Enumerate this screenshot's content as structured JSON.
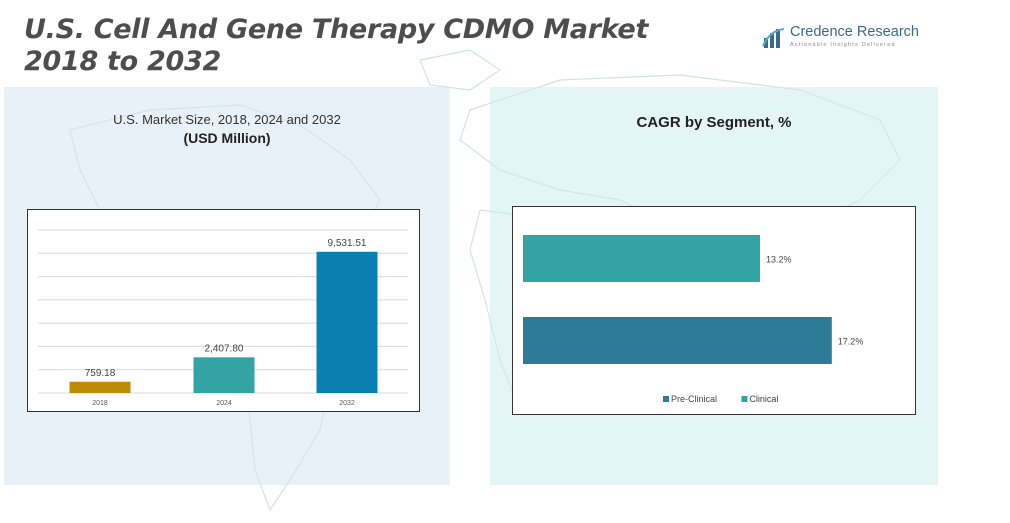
{
  "title": {
    "line1": "U.S. Cell And Gene Therapy CDMO Market",
    "line2": "2018 to 2032"
  },
  "brand": {
    "name": "Credence Research",
    "tagline": "Actionable Insights Delivered"
  },
  "colors": {
    "bar_2018": "#bf8b07",
    "bar_2024": "#33a3a3",
    "bar_2032": "#0a7fb0",
    "pre_clinical": "#2e7b98",
    "clinical": "#33a3a3",
    "title": "#4d4d4d"
  },
  "chart_data": [
    {
      "type": "bar",
      "subtitle": "U.S. Market Size, 2018, 2024 and 2032",
      "unit": "(USD Million)",
      "categories": [
        "2018",
        "2024",
        "2032"
      ],
      "values": [
        759.18,
        2407.8,
        9531.51
      ],
      "labels": [
        "759.18",
        "2,407.80",
        "9,531.51"
      ],
      "ylim": [
        0,
        11000
      ],
      "grid": true
    },
    {
      "type": "bar",
      "orientation": "horizontal",
      "title": "CAGR by Segment, %",
      "series": [
        {
          "name": "Clinical",
          "value": 13.2,
          "label": "13.2%"
        },
        {
          "name": "Pre-Clinical",
          "value": 17.2,
          "label": "17.2%"
        }
      ],
      "legend": [
        "Pre-Clinical",
        "Clinical"
      ],
      "xlim": [
        0,
        21.5
      ],
      "grid": false
    }
  ]
}
